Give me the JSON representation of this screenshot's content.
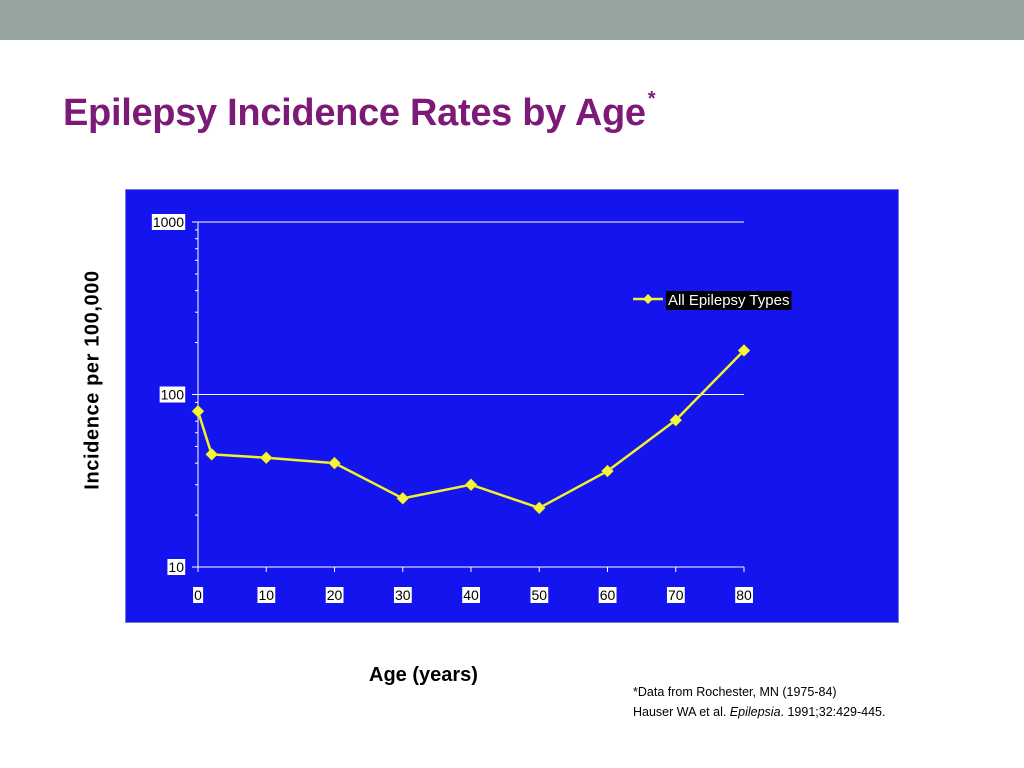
{
  "slide": {
    "title": "Epilepsy Incidence Rates by Age",
    "title_marker": "*",
    "footnote_line1": "*Data from Rochester, MN (1975-84)",
    "footnote_line2_pre": "Hauser WA et al. ",
    "footnote_line2_journal": "Epilepsia",
    "footnote_line2_post": ". 1991;32:429-445",
    "footnote_line2_end": "."
  },
  "colors": {
    "title": "#7d1a78",
    "panel_background": "#1414ee",
    "series_line": "#f2f22a",
    "marker": "#f5f53c",
    "gridline": "#ffffff"
  },
  "chart_data": {
    "type": "line",
    "title": "",
    "xlabel": "Age (years)",
    "ylabel": "Incidence per 100,000",
    "y_scale": "log",
    "ylim": [
      10,
      1000
    ],
    "xlim": [
      0,
      80
    ],
    "x_ticks": [
      "0",
      "10",
      "20",
      "30",
      "40",
      "50",
      "60",
      "70",
      "80"
    ],
    "y_ticks": [
      "10",
      "100",
      "1000"
    ],
    "grid": "horizontal at major ticks",
    "legend_position": "top-right",
    "series": [
      {
        "name": "All Epilepsy Types",
        "x": [
          0,
          2,
          10,
          20,
          30,
          40,
          50,
          60,
          70,
          80
        ],
        "y": [
          80,
          45,
          43,
          40,
          25,
          30,
          22,
          36,
          71,
          180
        ]
      }
    ]
  }
}
